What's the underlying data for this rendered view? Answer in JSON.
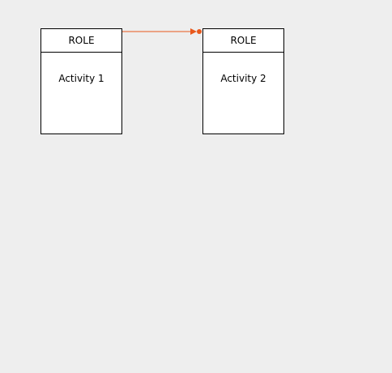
{
  "diagram": {
    "lanes": [
      {
        "role": "ROLE",
        "activity": "Activity 1"
      },
      {
        "role": "ROLE",
        "activity": "Activity 2"
      }
    ],
    "connector_color": "#e8581c",
    "background": "#eeeeee"
  }
}
